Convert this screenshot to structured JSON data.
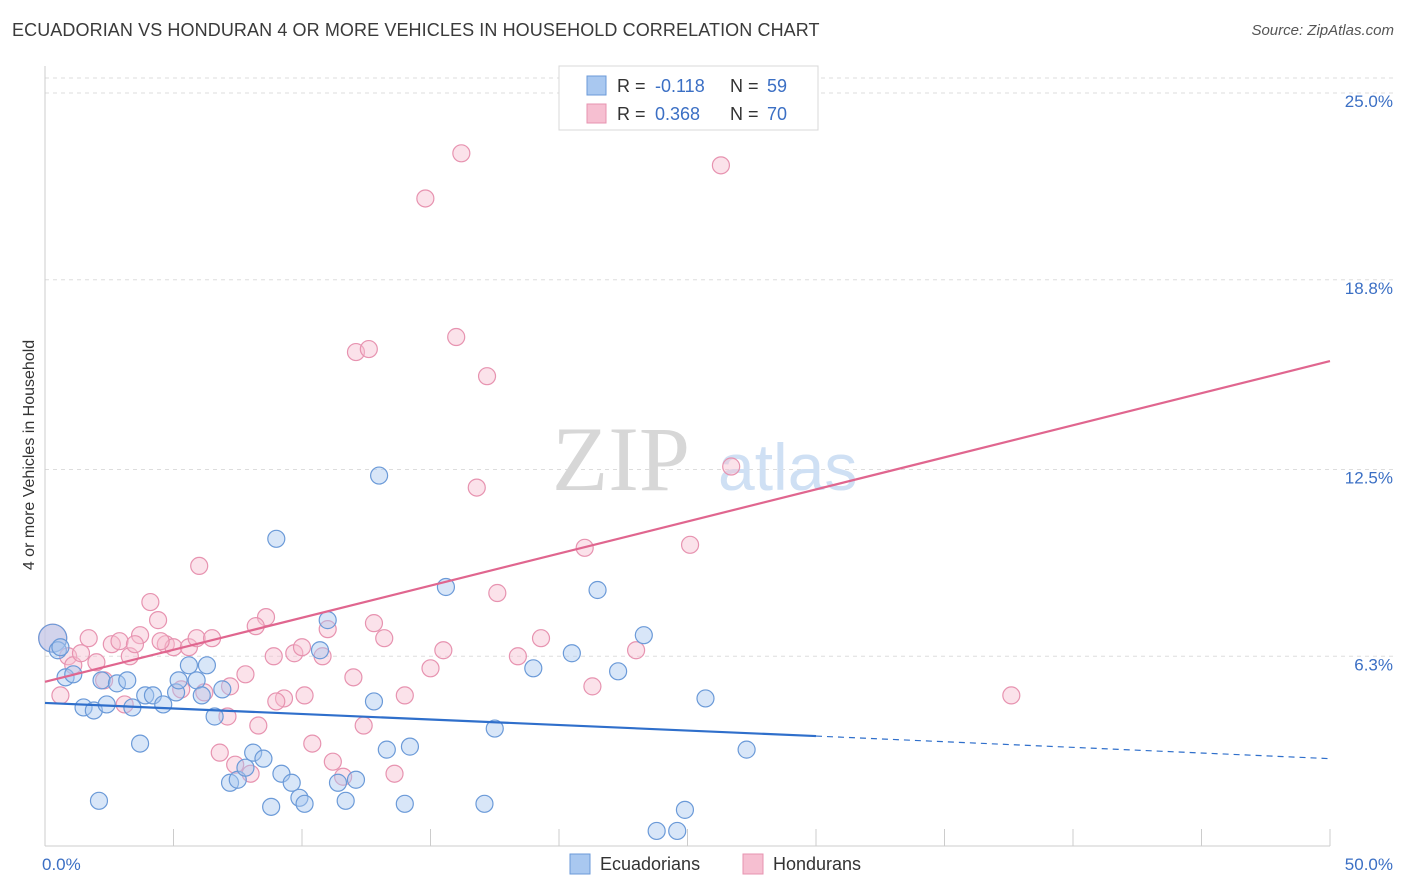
{
  "title": "ECUADORIAN VS HONDURAN 4 OR MORE VEHICLES IN HOUSEHOLD CORRELATION CHART",
  "source": "Source: ZipAtlas.com",
  "colors": {
    "blue_fill": "#a9c8f0",
    "blue_stroke": "#6b9ad8",
    "blue_line": "#2f6fcb",
    "pink_fill": "#f6bfd1",
    "pink_stroke": "#e793b0",
    "pink_line": "#e0668f",
    "grid": "#dddddd",
    "tick_text": "#3b6fc4"
  },
  "legend": {
    "r_label": "R =",
    "n_label": "N =",
    "series": [
      {
        "r": "-0.118",
        "n": "59"
      },
      {
        "r": "0.368",
        "n": "70"
      }
    ]
  },
  "watermark": {
    "zip": "ZIP",
    "atlas": "atlas"
  },
  "chart_data": {
    "type": "scatter",
    "title": "ECUADORIAN VS HONDURAN 4 OR MORE VEHICLES IN HOUSEHOLD CORRELATION CHART",
    "xlabel": "",
    "ylabel": "4 or more Vehicles in Household",
    "xlim": [
      0,
      50
    ],
    "ylim": [
      0,
      25.5
    ],
    "y_ticks": [
      {
        "value": 6.3,
        "label": "6.3%"
      },
      {
        "value": 12.5,
        "label": "12.5%"
      },
      {
        "value": 18.8,
        "label": "18.8%"
      },
      {
        "value": 25.0,
        "label": "25.0%"
      }
    ],
    "x_tick_labels": {
      "min": "0.0%",
      "max": "50.0%"
    },
    "series": [
      {
        "name": "Ecuadorians",
        "r": -0.118,
        "n": 59,
        "trend": {
          "x0": 0,
          "y0": 4.75,
          "x1": 30,
          "y1": 3.65,
          "dash_to_x": 50,
          "dash_to_y": 2.9
        },
        "points": [
          [
            0.3,
            6.9
          ],
          [
            0.5,
            6.5
          ],
          [
            0.8,
            5.6
          ],
          [
            1.1,
            5.7
          ],
          [
            1.5,
            4.6
          ],
          [
            1.9,
            4.5
          ],
          [
            2.2,
            5.5
          ],
          [
            2.4,
            4.7
          ],
          [
            2.8,
            5.4
          ],
          [
            3.2,
            5.5
          ],
          [
            3.4,
            4.6
          ],
          [
            3.7,
            3.4
          ],
          [
            3.9,
            5.0
          ],
          [
            4.2,
            5.0
          ],
          [
            4.6,
            4.7
          ],
          [
            5.1,
            5.1
          ],
          [
            5.2,
            5.5
          ],
          [
            5.6,
            6.0
          ],
          [
            5.9,
            5.5
          ],
          [
            6.3,
            6.0
          ],
          [
            6.6,
            4.3
          ],
          [
            6.9,
            5.2
          ],
          [
            7.2,
            2.1
          ],
          [
            7.5,
            2.2
          ],
          [
            7.8,
            2.6
          ],
          [
            8.1,
            3.1
          ],
          [
            8.5,
            2.9
          ],
          [
            9.2,
            2.4
          ],
          [
            9.6,
            2.1
          ],
          [
            9.9,
            1.6
          ],
          [
            10.1,
            1.4
          ],
          [
            10.7,
            6.5
          ],
          [
            11.0,
            7.5
          ],
          [
            11.4,
            2.1
          ],
          [
            11.7,
            1.5
          ],
          [
            12.1,
            2.2
          ],
          [
            12.8,
            4.8
          ],
          [
            13.3,
            3.2
          ],
          [
            14.0,
            1.4
          ],
          [
            14.2,
            3.3
          ],
          [
            15.6,
            8.6
          ],
          [
            17.1,
            1.4
          ],
          [
            17.5,
            3.9
          ],
          [
            19.0,
            5.9
          ],
          [
            20.5,
            6.4
          ],
          [
            21.5,
            8.5
          ],
          [
            22.3,
            5.8
          ],
          [
            23.3,
            7.0
          ],
          [
            23.8,
            0.5
          ],
          [
            24.6,
            0.5
          ],
          [
            24.9,
            1.2
          ],
          [
            25.7,
            4.9
          ],
          [
            27.3,
            3.2
          ],
          [
            8.8,
            1.3
          ],
          [
            2.1,
            1.5
          ],
          [
            9.0,
            10.2
          ],
          [
            13.0,
            12.3
          ],
          [
            0.6,
            6.6
          ],
          [
            6.1,
            5.0
          ]
        ]
      },
      {
        "name": "Hondurans",
        "r": 0.368,
        "n": 70,
        "trend": {
          "x0": 0,
          "y0": 5.45,
          "x1": 50,
          "y1": 16.1
        },
        "points": [
          [
            0.3,
            6.9
          ],
          [
            0.6,
            5.0
          ],
          [
            0.9,
            6.3
          ],
          [
            1.1,
            6.0
          ],
          [
            1.4,
            6.4
          ],
          [
            1.7,
            6.9
          ],
          [
            2.0,
            6.1
          ],
          [
            2.3,
            5.5
          ],
          [
            2.6,
            6.7
          ],
          [
            2.9,
            6.8
          ],
          [
            3.1,
            4.7
          ],
          [
            3.3,
            6.3
          ],
          [
            3.7,
            7.0
          ],
          [
            4.1,
            8.1
          ],
          [
            4.4,
            7.5
          ],
          [
            4.7,
            6.7
          ],
          [
            5.0,
            6.6
          ],
          [
            5.3,
            5.2
          ],
          [
            5.6,
            6.6
          ],
          [
            5.9,
            6.9
          ],
          [
            6.2,
            5.1
          ],
          [
            6.5,
            6.9
          ],
          [
            6.8,
            3.1
          ],
          [
            7.1,
            4.3
          ],
          [
            7.4,
            2.7
          ],
          [
            7.8,
            5.7
          ],
          [
            8.0,
            2.4
          ],
          [
            8.3,
            4.0
          ],
          [
            8.6,
            7.6
          ],
          [
            8.9,
            6.3
          ],
          [
            9.3,
            4.9
          ],
          [
            9.7,
            6.4
          ],
          [
            10.1,
            5.0
          ],
          [
            10.4,
            3.4
          ],
          [
            10.8,
            6.3
          ],
          [
            11.2,
            2.8
          ],
          [
            11.6,
            2.3
          ],
          [
            12.0,
            5.6
          ],
          [
            12.4,
            4.0
          ],
          [
            12.8,
            7.4
          ],
          [
            13.2,
            6.9
          ],
          [
            13.6,
            2.4
          ],
          [
            14.0,
            5.0
          ],
          [
            15.0,
            5.9
          ],
          [
            15.5,
            6.5
          ],
          [
            16.0,
            16.9
          ],
          [
            16.2,
            23.0
          ],
          [
            16.8,
            11.9
          ],
          [
            17.2,
            15.6
          ],
          [
            17.6,
            8.4
          ],
          [
            18.4,
            6.3
          ],
          [
            19.3,
            6.9
          ],
          [
            21.0,
            9.9
          ],
          [
            21.3,
            5.3
          ],
          [
            23.0,
            6.5
          ],
          [
            25.1,
            10.0
          ],
          [
            26.3,
            22.6
          ],
          [
            26.7,
            12.6
          ],
          [
            37.6,
            5.0
          ],
          [
            14.8,
            21.5
          ],
          [
            12.1,
            16.4
          ],
          [
            12.6,
            16.5
          ],
          [
            10.0,
            6.6
          ],
          [
            11.0,
            7.2
          ],
          [
            9.0,
            4.8
          ],
          [
            7.2,
            5.3
          ],
          [
            4.5,
            6.8
          ],
          [
            6.0,
            9.3
          ],
          [
            3.5,
            6.7
          ],
          [
            8.2,
            7.3
          ]
        ]
      }
    ]
  }
}
